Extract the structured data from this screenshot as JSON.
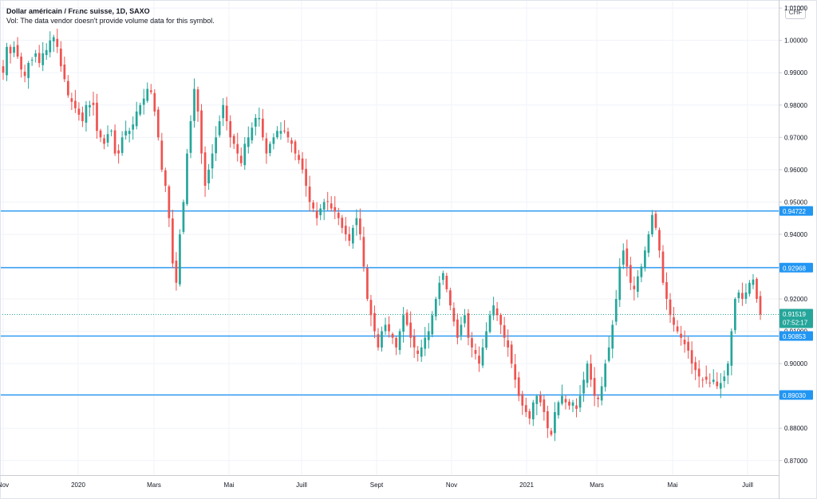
{
  "header": {
    "title": "Dollar américain / Franc suisse, 1D, SAXO",
    "volume_note": "Vol: The data vendor doesn't provide volume data for this symbol.",
    "currency": "CHF"
  },
  "colors": {
    "up": "#26a69a",
    "down": "#ef5350",
    "level_line": "#2196f3",
    "price_badge": "#26a69a"
  },
  "chart_data": {
    "type": "candlestick",
    "title": "Dollar américain / Franc suisse, 1D, SAXO",
    "ylim": [
      0.8655,
      1.0125
    ],
    "y_ticks": [
      "1.01000",
      "1.00000",
      "0.99000",
      "0.98000",
      "0.97000",
      "0.96000",
      "0.95000",
      "0.94000",
      "0.93000",
      "0.92000",
      "0.91000",
      "0.90000",
      "0.89000",
      "0.88000",
      "0.87000"
    ],
    "x_ticks": [
      "Nov",
      "2020",
      "Mars",
      "Mai",
      "Juill",
      "Sept",
      "Nov",
      "2021",
      "Mars",
      "Mai",
      "Juill"
    ],
    "grid": true,
    "horizontal_levels": [
      {
        "value": 0.94722,
        "label": "0.94722"
      },
      {
        "value": 0.92968,
        "label": "0.92968"
      },
      {
        "value": 0.90853,
        "label": "0.90853"
      },
      {
        "value": 0.8903,
        "label": "0.89030"
      }
    ],
    "last_price": {
      "value": 0.91519,
      "label": "0.91519",
      "countdown": "07:52:17"
    },
    "series_close": [
      0.99,
      0.998,
      0.996,
      0.998,
      0.995,
      0.991,
      0.989,
      0.993,
      0.994,
      0.996,
      0.993,
      0.996,
      0.997,
      1.0,
      1.001,
      0.998,
      0.992,
      0.988,
      0.983,
      0.981,
      0.979,
      0.977,
      0.975,
      0.98,
      0.98,
      0.98,
      0.972,
      0.97,
      0.968,
      0.971,
      0.972,
      0.965,
      0.965,
      0.97,
      0.972,
      0.972,
      0.974,
      0.978,
      0.98,
      0.982,
      0.985,
      0.984,
      0.978,
      0.97,
      0.96,
      0.955,
      0.945,
      0.931,
      0.925,
      0.94,
      0.95,
      0.965,
      0.975,
      0.985,
      0.978,
      0.965,
      0.955,
      0.96,
      0.965,
      0.97,
      0.975,
      0.98,
      0.975,
      0.97,
      0.968,
      0.965,
      0.962,
      0.968,
      0.97,
      0.973,
      0.976,
      0.976,
      0.97,
      0.965,
      0.968,
      0.97,
      0.972,
      0.972,
      0.972,
      0.97,
      0.968,
      0.965,
      0.963,
      0.96,
      0.955,
      0.95,
      0.948,
      0.945,
      0.948,
      0.95,
      0.95,
      0.948,
      0.947,
      0.945,
      0.942,
      0.94,
      0.938,
      0.942,
      0.945,
      0.94,
      0.93,
      0.92,
      0.915,
      0.91,
      0.905,
      0.91,
      0.912,
      0.91,
      0.908,
      0.905,
      0.91,
      0.915,
      0.912,
      0.908,
      0.905,
      0.903,
      0.905,
      0.908,
      0.91,
      0.915,
      0.92,
      0.925,
      0.928,
      0.923,
      0.918,
      0.913,
      0.908,
      0.912,
      0.915,
      0.908,
      0.905,
      0.903,
      0.9,
      0.905,
      0.91,
      0.915,
      0.918,
      0.915,
      0.912,
      0.908,
      0.905,
      0.9,
      0.895,
      0.89,
      0.887,
      0.885,
      0.883,
      0.888,
      0.89,
      0.888,
      0.885,
      0.88,
      0.878,
      0.885,
      0.888,
      0.89,
      0.888,
      0.887,
      0.888,
      0.886,
      0.89,
      0.895,
      0.9,
      0.895,
      0.89,
      0.889,
      0.893,
      0.9,
      0.905,
      0.912,
      0.92,
      0.93,
      0.935,
      0.93,
      0.925,
      0.923,
      0.927,
      0.93,
      0.935,
      0.94,
      0.946,
      0.942,
      0.935,
      0.925,
      0.92,
      0.915,
      0.912,
      0.91,
      0.908,
      0.906,
      0.904,
      0.9,
      0.898,
      0.896,
      0.895,
      0.895,
      0.894,
      0.895,
      0.893,
      0.894,
      0.896,
      0.9,
      0.91,
      0.92,
      0.922,
      0.92,
      0.922,
      0.925,
      0.926,
      0.92,
      0.9152
    ]
  }
}
